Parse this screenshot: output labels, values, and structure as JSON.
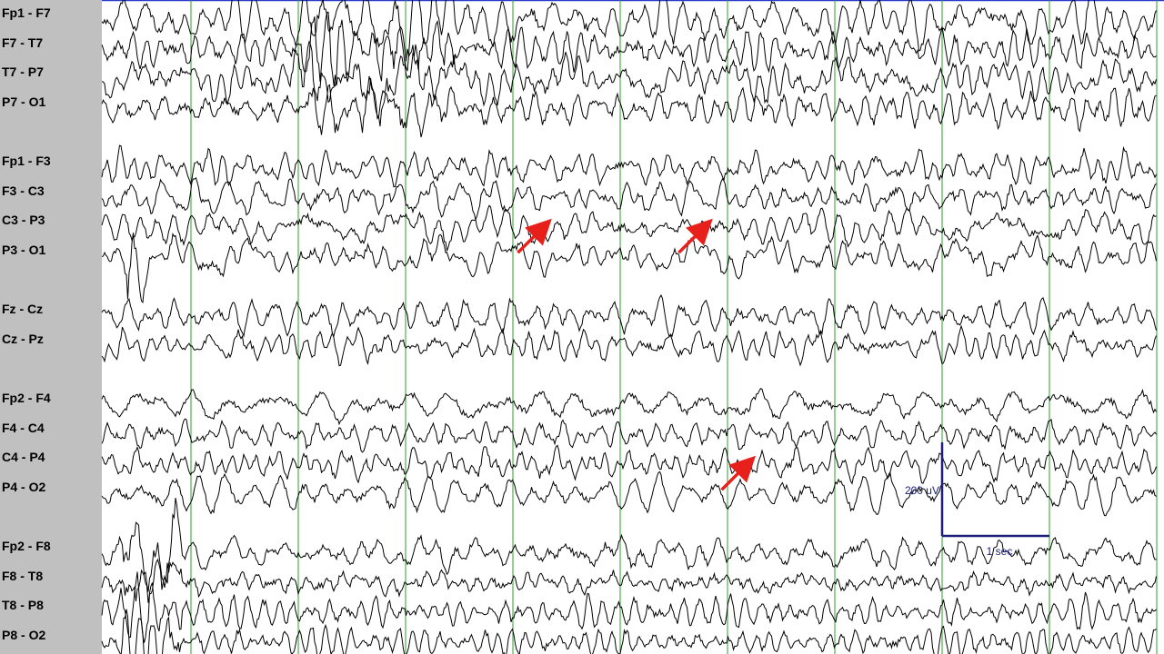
{
  "colors": {
    "label_panel": "#c0c0c0",
    "trace": "#000000",
    "second_marker": "#2e9e2e",
    "top_border": "#2a3bcc",
    "calibration": "#1a1f7a",
    "arrow": "#e8201c"
  },
  "chart_data": {
    "type": "line",
    "channels": [
      "Fp1 - F7",
      "F7 - T7",
      "T7 - P7",
      "P7 - O1",
      "Fp1 - F3",
      "F3 - C3",
      "C3 - P3",
      "P3 - O1",
      "Fz - Cz",
      "Cz - Pz",
      "Fp2 - F4",
      "F4 - C4",
      "C4 - P4",
      "P4 - O2",
      "Fp2 - F8",
      "F8 - T8",
      "T8 - P8",
      "P8 - O2"
    ],
    "groups": [
      [
        "Fp1 - F7",
        "F7 - T7",
        "T7 - P7",
        "P7 - O1"
      ],
      [
        "Fp1 - F3",
        "F3 - C3",
        "C3 - P3",
        "P3 - O1"
      ],
      [
        "Fz - Cz",
        "Cz - Pz"
      ],
      [
        "Fp2 - F4",
        "F4 - C4",
        "C4 - P4",
        "P4 - O2"
      ],
      [
        "Fp2 - F8",
        "F8 - T8",
        "T8 - P8",
        "P8 - O2"
      ]
    ],
    "time_span_sec": 10,
    "second_markers_sec": [
      1,
      2,
      3,
      4,
      5,
      6,
      7,
      8,
      9,
      10
    ],
    "calibration": {
      "amplitude_label": "200 uV",
      "amplitude_uv": 200,
      "time_label": "1 sec",
      "time_sec": 1,
      "start_sec": 8
    },
    "annotations": [
      {
        "type": "arrow",
        "channel": "C3 - P3",
        "at_sec": 4.3
      },
      {
        "type": "arrow",
        "channel": "C3 - P3",
        "at_sec": 5.8
      },
      {
        "type": "arrow",
        "channel": "C4 - P4",
        "at_sec": 6.2
      }
    ],
    "grid": "vertical one-second lines"
  }
}
